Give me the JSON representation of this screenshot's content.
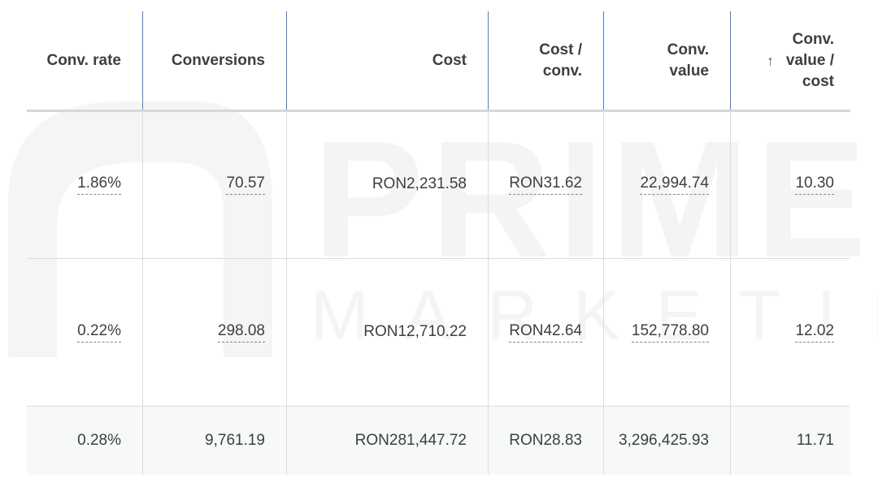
{
  "watermark": {
    "title": "PRIME",
    "subtitle": "MARKETING"
  },
  "table": {
    "headers": [
      "Conv. rate",
      "Conversions",
      "Cost",
      "Cost / conv.",
      "Conv. value",
      "Conv. value / cost"
    ],
    "rows": [
      [
        "1.86%",
        "70.57",
        "RON2,231.58",
        "RON31.62",
        "22,994.74",
        "10.30"
      ],
      [
        "0.22%",
        "298.08",
        "RON12,710.22",
        "RON42.64",
        "152,778.80",
        "12.02"
      ],
      [
        "0.28%",
        "9,761.19",
        "RON281,447.72",
        "RON28.83",
        "3,296,425.93",
        "11.71"
      ]
    ]
  }
}
